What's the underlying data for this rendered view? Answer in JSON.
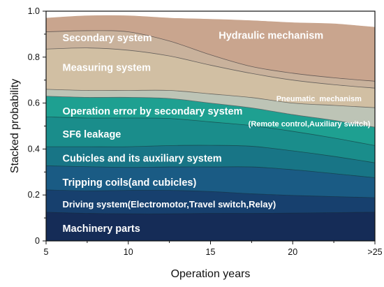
{
  "chart_data": {
    "type": "area",
    "stacked": true,
    "xlabel": "Operation years",
    "ylabel": "Stacked probability",
    "x": [
      5,
      7.5,
      10,
      12.5,
      15,
      17.5,
      20,
      22.5,
      25
    ],
    "x_tick_values": [
      5,
      10,
      15,
      20,
      25
    ],
    "x_tick_labels": [
      "5",
      "10",
      "15",
      "20",
      ">25"
    ],
    "xlim": [
      5,
      25
    ],
    "ylim": [
      0,
      1
    ],
    "y_tick_values": [
      0,
      0.2,
      0.4,
      0.6,
      0.8,
      1.0
    ],
    "y_tick_labels": [
      "0",
      "0.2",
      "0.4",
      "0.6",
      "0.8",
      "1.0"
    ],
    "grid": false,
    "legend": "none",
    "series": [
      {
        "name": "Machinery parts",
        "color": "#152c57",
        "values": [
          0.125,
          0.12,
          0.118,
          0.118,
          0.12,
          0.12,
          0.121,
          0.123,
          0.125
        ]
      },
      {
        "name": "Driving system(Electromotor,Travel switch,Relay)",
        "color": "#17406e",
        "values": [
          0.097,
          0.098,
          0.102,
          0.102,
          0.095,
          0.085,
          0.077,
          0.07,
          0.063
        ]
      },
      {
        "name": "Tripping coils(and cubicles)",
        "color": "#1a5b84",
        "values": [
          0.105,
          0.105,
          0.1,
          0.102,
          0.107,
          0.117,
          0.112,
          0.1,
          0.087
        ]
      },
      {
        "name": "Cubicles and its auxiliary system",
        "color": "#187586",
        "values": [
          0.083,
          0.087,
          0.09,
          0.093,
          0.094,
          0.09,
          0.082,
          0.075,
          0.065
        ]
      },
      {
        "name": "SF6 leakage",
        "color": "#1a8d8b",
        "values": [
          0.13,
          0.125,
          0.125,
          0.118,
          0.102,
          0.09,
          0.085,
          0.08,
          0.075
        ]
      },
      {
        "name": "Operation error by secondary system",
        "color": "#1ea091",
        "values": [
          0.09,
          0.09,
          0.09,
          0.087,
          0.082,
          0.077,
          0.073,
          0.077,
          0.08
        ]
      },
      {
        "name": "Pneumatic  mechanism",
        "color": "#bdc4b6",
        "values": [
          0.03,
          0.03,
          0.03,
          0.035,
          0.04,
          0.045,
          0.05,
          0.065,
          0.085
        ]
      },
      {
        "name": "Measuring system",
        "color": "#d1bfa3",
        "values": [
          0.175,
          0.185,
          0.175,
          0.15,
          0.125,
          0.105,
          0.1,
          0.09,
          0.085
        ]
      },
      {
        "name": "Secondary system",
        "color": "#c9b29c",
        "values": [
          0.075,
          0.075,
          0.08,
          0.065,
          0.045,
          0.03,
          0.03,
          0.03,
          0.03
        ]
      },
      {
        "name": "Hydraulic mechanism",
        "color": "#c9a58e",
        "values": [
          0.06,
          0.065,
          0.07,
          0.1,
          0.155,
          0.2,
          0.22,
          0.235,
          0.235
        ]
      }
    ],
    "annotations": [
      {
        "text": "Hydraulic mechanism",
        "series": "Hydraulic mechanism",
        "x": 15.5,
        "y": 0.895
      },
      {
        "text": "Secondary system",
        "series": "Secondary system",
        "x": 6.0,
        "y": 0.885
      },
      {
        "text": "Measuring system",
        "series": "Measuring system",
        "x": 6.0,
        "y": 0.755
      },
      {
        "text": "Pneumatic  mechanism",
        "series": "Pneumatic  mechanism",
        "x": 19.0,
        "y": 0.62
      },
      {
        "text": "Operation error by secondary system",
        "series": "Operation error by secondary system",
        "x": 6.0,
        "y": 0.565
      },
      {
        "text": "(Remote control,Auxiliary switch)",
        "series": "Operation error by secondary system",
        "x": 17.3,
        "y": 0.51
      },
      {
        "text": "SF6 leakage",
        "series": "SF6 leakage",
        "x": 6.0,
        "y": 0.465
      },
      {
        "text": "Cubicles and its auxiliary system",
        "series": "Cubicles and its auxiliary system",
        "x": 6.0,
        "y": 0.36
      },
      {
        "text": "Tripping coils(and cubicles)",
        "series": "Tripping coils(and cubicles)",
        "x": 6.0,
        "y": 0.255
      },
      {
        "text": "Driving system(Electromotor,Travel switch,Relay)",
        "series": "Driving system(Electromotor,Travel switch,Relay)",
        "x": 6.0,
        "y": 0.16
      },
      {
        "text": "Machinery parts",
        "series": "Machinery parts",
        "x": 6.0,
        "y": 0.055
      }
    ]
  }
}
